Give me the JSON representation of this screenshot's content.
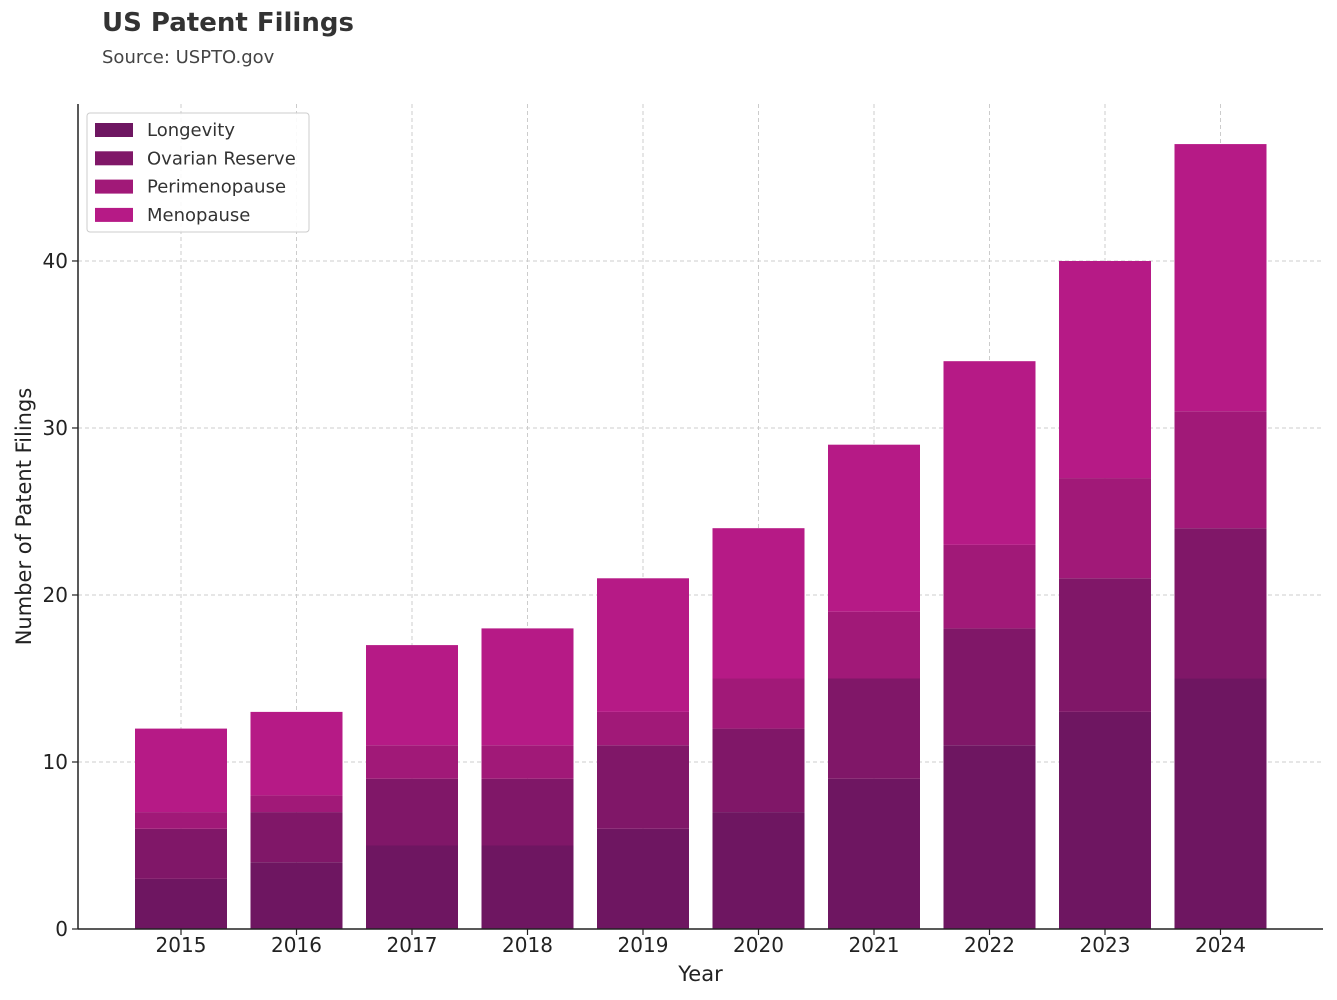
{
  "chart_data": {
    "type": "bar",
    "stacked": true,
    "title": "US Patent Filings",
    "subtitle": "Source: USPTO.gov",
    "xlabel": "Year",
    "ylabel": "Number of Patent Filings",
    "categories": [
      "2015",
      "2016",
      "2017",
      "2018",
      "2019",
      "2020",
      "2021",
      "2022",
      "2023",
      "2024"
    ],
    "series": [
      {
        "name": "Longevity",
        "color": "#6e1661",
        "values": [
          3,
          4,
          5,
          5,
          6,
          7,
          9,
          11,
          13,
          15
        ]
      },
      {
        "name": "Ovarian Reserve",
        "color": "#801768",
        "values": [
          3,
          3,
          4,
          4,
          5,
          5,
          6,
          7,
          8,
          9
        ]
      },
      {
        "name": "Perimenopause",
        "color": "#a11978",
        "values": [
          1,
          1,
          2,
          2,
          2,
          3,
          4,
          5,
          6,
          7
        ]
      },
      {
        "name": "Menopause",
        "color": "#b61a86",
        "values": [
          5,
          5,
          6,
          7,
          8,
          9,
          10,
          11,
          13,
          16
        ]
      }
    ],
    "ylim": [
      0,
      49.4
    ],
    "yticks": [
      0,
      10,
      20,
      30,
      40
    ],
    "grid": true,
    "legend_position": "top-left"
  }
}
